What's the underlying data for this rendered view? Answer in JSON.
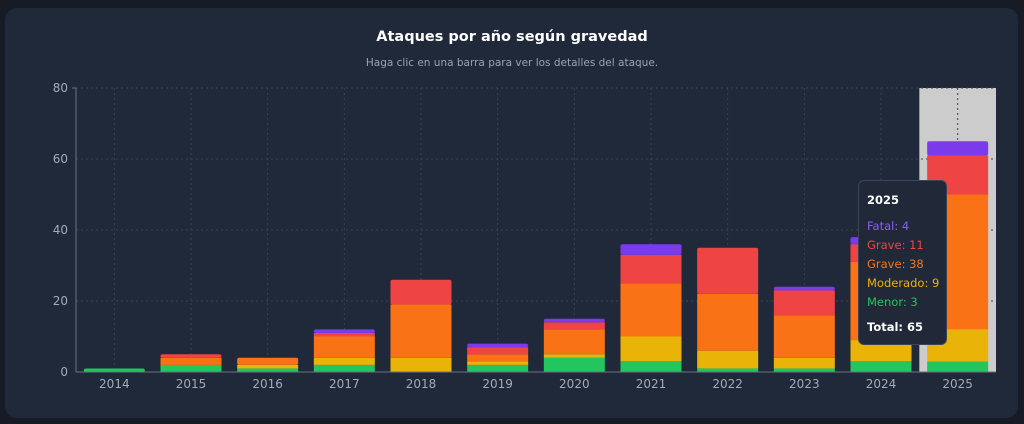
{
  "chart_data": {
    "type": "bar",
    "stacked": true,
    "title": "Ataques por año según gravedad",
    "subtitle": "Haga clic en una barra para ver los detalles del ataque.",
    "categories": [
      "2014",
      "2015",
      "2016",
      "2017",
      "2018",
      "2019",
      "2020",
      "2021",
      "2022",
      "2023",
      "2024",
      "2025"
    ],
    "series": [
      {
        "name": "Menor",
        "color": "#22c55e",
        "values": [
          1,
          2,
          1,
          2,
          0,
          2,
          4,
          3,
          1,
          1,
          3,
          3
        ]
      },
      {
        "name": "Moderado",
        "color": "#eab308",
        "values": [
          0,
          0,
          1,
          2,
          4,
          1,
          1,
          7,
          5,
          3,
          6,
          9
        ]
      },
      {
        "name": "Grave",
        "color": "#f97316",
        "values": [
          0,
          2,
          2,
          6,
          15,
          2,
          7,
          15,
          16,
          12,
          22,
          38
        ]
      },
      {
        "name": "Grave",
        "color": "#ef4444",
        "values": [
          0,
          1,
          0,
          1,
          7,
          2,
          2,
          8,
          13,
          7,
          5,
          11
        ]
      },
      {
        "name": "Fatal",
        "color": "#7c3aed",
        "values": [
          0,
          0,
          0,
          1,
          0,
          1,
          1,
          3,
          0,
          1,
          2,
          4
        ]
      }
    ],
    "yticks": [
      0,
      20,
      40,
      60,
      80
    ],
    "ylim": [
      0,
      80
    ],
    "grid": true,
    "highlighted_category": "2025",
    "highlight_color": "#cccccc"
  },
  "tooltip": {
    "title": "2025",
    "lines": [
      {
        "text": "Fatal: 4",
        "color": "#8b5cf6"
      },
      {
        "text": "Grave: 11",
        "color": "#ef4444"
      },
      {
        "text": "Grave: 38",
        "color": "#f97316"
      },
      {
        "text": "Moderado: 9",
        "color": "#eab308"
      },
      {
        "text": "Menor: 3",
        "color": "#22c55e"
      }
    ],
    "total": "Total: 65"
  }
}
